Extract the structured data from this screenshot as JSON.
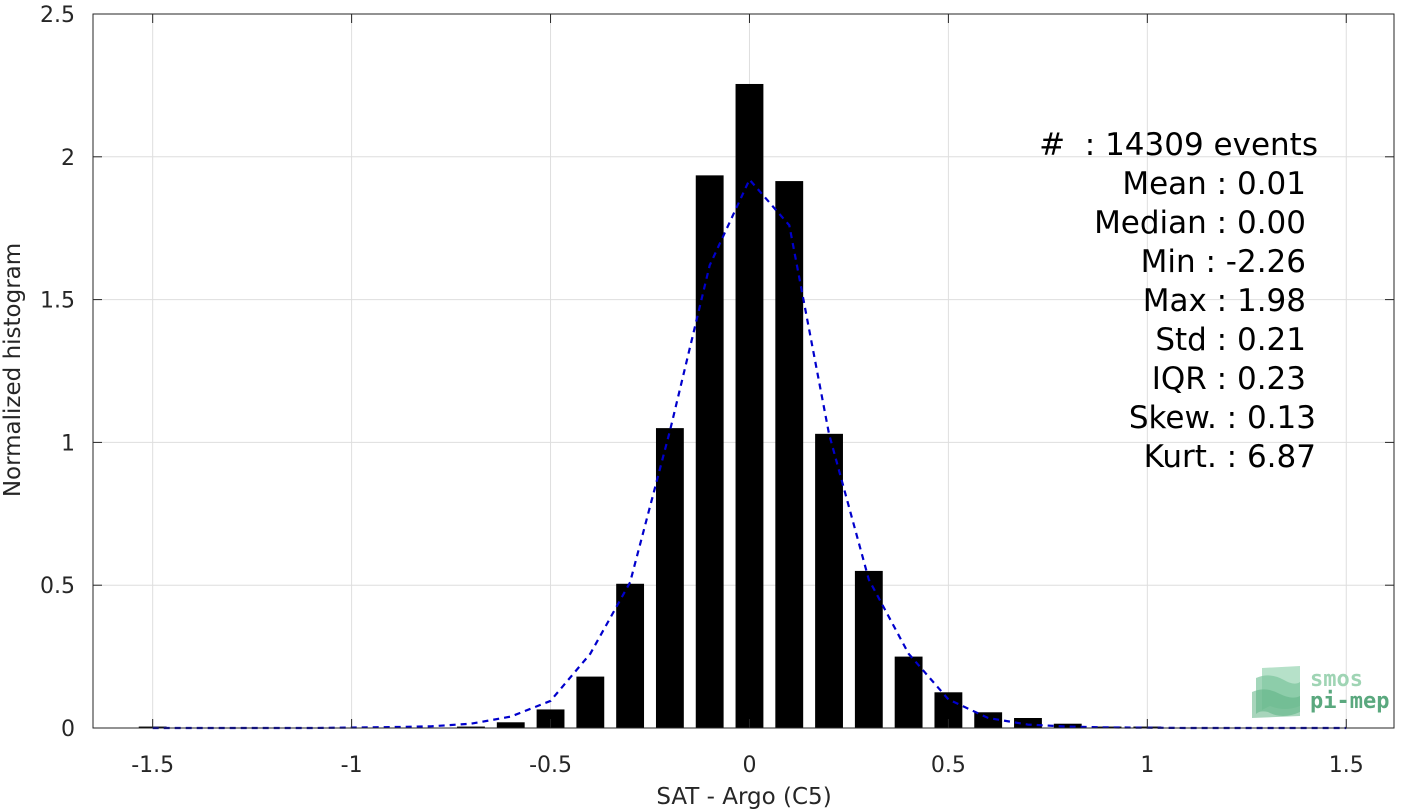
{
  "chart_data": {
    "type": "bar",
    "xlabel": "SAT - Argo (C5)",
    "ylabel": "Normalized histogram",
    "xlim": [
      -1.65,
      1.62
    ],
    "ylim": [
      0,
      2.5
    ],
    "grid": true,
    "x_ticks": [
      -1.5,
      -1,
      -0.5,
      0,
      0.5,
      1,
      1.5
    ],
    "x_tick_labels": [
      "-1.5",
      "-1",
      "-0.5",
      "0",
      "0.5",
      "1",
      "1.5"
    ],
    "y_ticks": [
      0,
      0.5,
      1,
      1.5,
      2,
      2.5
    ],
    "y_tick_labels": [
      "0",
      "0.5",
      "1",
      "1.5",
      "2",
      "2.5"
    ],
    "bar_width": 0.07,
    "bars": {
      "x": [
        -1.5,
        -1.4,
        -1.3,
        -1.2,
        -1.1,
        -1.0,
        -0.9,
        -0.8,
        -0.7,
        -0.6,
        -0.5,
        -0.4,
        -0.3,
        -0.2,
        -0.1,
        0.0,
        0.1,
        0.2,
        0.3,
        0.4,
        0.5,
        0.6,
        0.7,
        0.8,
        0.9,
        1.0,
        1.1,
        1.2,
        1.3,
        1.4,
        1.5
      ],
      "values": [
        0.005,
        0.0,
        0.0,
        0.0,
        0.0,
        0.0,
        0.0,
        0.0,
        0.005,
        0.02,
        0.065,
        0.18,
        0.505,
        1.05,
        1.935,
        2.255,
        1.915,
        1.03,
        0.55,
        0.25,
        0.125,
        0.055,
        0.035,
        0.015,
        0.005,
        0.005,
        0.0,
        0.0,
        0.0,
        0.0,
        0.0
      ],
      "color": "#000000"
    },
    "fit_curve": {
      "style": "dashed",
      "color": "#0000cc",
      "x": [
        -1.5,
        -1.3,
        -1.1,
        -0.9,
        -0.8,
        -0.7,
        -0.6,
        -0.5,
        -0.4,
        -0.3,
        -0.2,
        -0.1,
        0.0,
        0.1,
        0.2,
        0.3,
        0.4,
        0.5,
        0.6,
        0.7,
        0.8,
        0.9,
        1.0,
        1.1,
        1.3,
        1.5
      ],
      "y": [
        0.0,
        0.0,
        0.0,
        0.003,
        0.006,
        0.015,
        0.04,
        0.095,
        0.26,
        0.51,
        1.04,
        1.62,
        1.92,
        1.76,
        1.03,
        0.52,
        0.26,
        0.1,
        0.035,
        0.012,
        0.005,
        0.002,
        0.001,
        0.0,
        0.0,
        0.0
      ]
    },
    "annotations": [
      "#  : 14309 events",
      "Mean : 0.01",
      "Median : 0.00",
      "Min : -2.26",
      "Max : 1.98",
      "Std : 0.21",
      "IQR : 0.23",
      "Skew. : 0.13",
      "Kurt. : 6.87"
    ]
  },
  "logo": {
    "line1": "smos",
    "line2": "pi-mep",
    "color_light": "#9fd4b4",
    "color_dark": "#3d9a6a"
  }
}
